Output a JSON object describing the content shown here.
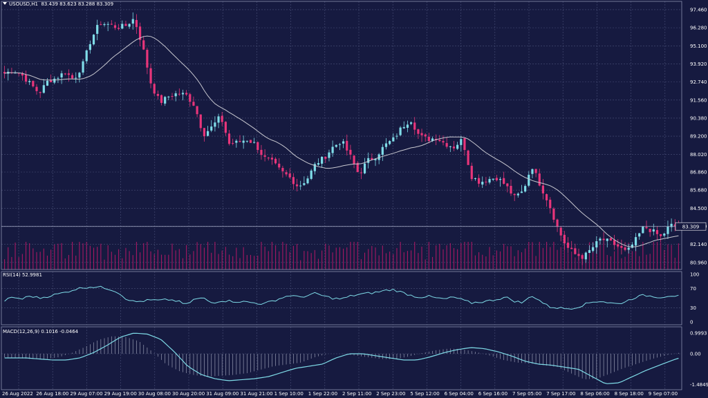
{
  "header": {
    "symbol": "USOUSD,H1",
    "ohlc": "83.439 83.623 83.288 83.309"
  },
  "current_price_label": "83.309",
  "price_axis": [
    "97.460",
    "96.280",
    "95.100",
    "93.920",
    "92.740",
    "91.560",
    "90.380",
    "89.200",
    "88.020",
    "86.860",
    "85.680",
    "84.500",
    "83.320",
    "82.140",
    "80.960"
  ],
  "time_axis": [
    "26 Aug 2022",
    "26 Aug 18:00",
    "29 Aug 07:00",
    "29 Aug 19:00",
    "30 Aug 08:00",
    "30 Aug 20:00",
    "31 Aug 09:00",
    "31 Aug 21:00",
    "1 Sep 10:00",
    "1 Sep 22:00",
    "2 Sep 11:00",
    "2 Sep 23:00",
    "5 Sep 12:00",
    "6 Sep 04:00",
    "6 Sep 16:00",
    "7 Sep 05:00",
    "7 Sep 17:00",
    "8 Sep 06:00",
    "8 Sep 18:00",
    "9 Sep 07:00"
  ],
  "rsi": {
    "label": "RSI(14) 52.9981",
    "levels": [
      "100",
      "70",
      "30",
      "0"
    ]
  },
  "macd": {
    "label": "MACD(12,26,9) 0.1016 -0.0464",
    "levels": [
      "0.9993",
      "0.00",
      "-1.4849"
    ]
  },
  "colors": {
    "background": "#161a40",
    "grid": "#4a5078",
    "bull": "#7fdce8",
    "bear": "#e8357a",
    "ma": "#c8c8d0",
    "volume": "#c0186a",
    "rsi_line": "#7fdce8",
    "macd_line": "#7fdce8",
    "text": "#ffffff"
  },
  "chart_data": {
    "type": "candlestick",
    "close_waypoints": [
      93.3,
      93.5,
      93.2,
      92.6,
      92.0,
      92.8,
      93.0,
      93.4,
      92.9,
      93.8,
      95.5,
      96.6,
      96.5,
      96.3,
      96.4,
      96.9,
      95.0,
      92.5,
      91.4,
      91.8,
      92.0,
      91.9,
      91.2,
      89.3,
      89.8,
      90.5,
      88.7,
      88.8,
      89.0,
      88.7,
      87.8,
      87.5,
      86.9,
      86.5,
      85.9,
      86.4,
      87.4,
      87.8,
      88.5,
      88.9,
      87.9,
      86.7,
      87.6,
      87.9,
      88.6,
      89.0,
      89.8,
      90.3,
      89.2,
      89.0,
      89.1,
      88.7,
      88.5,
      89.0,
      86.6,
      86.2,
      86.4,
      86.5,
      86.0,
      85.2,
      85.6,
      87.3,
      86.0,
      84.8,
      83.2,
      82.0,
      81.5,
      81.3,
      81.9,
      82.5,
      82.3,
      82.0,
      81.6,
      82.4,
      83.3,
      83.0,
      82.6,
      83.4,
      83.309
    ],
    "ma_period": 20,
    "y_range": [
      80.5,
      98.0
    ],
    "rsi_waypoints": [
      45,
      52,
      48,
      55,
      50,
      54,
      58,
      62,
      68,
      72,
      74,
      73,
      70,
      64,
      50,
      42,
      44,
      46,
      45,
      47,
      44,
      36,
      48,
      50,
      40,
      45,
      44,
      43,
      42,
      40,
      38,
      44,
      50,
      56,
      52,
      55,
      60,
      54,
      50,
      48,
      54,
      58,
      60,
      62,
      66,
      68,
      62,
      56,
      52,
      54,
      50,
      48,
      52,
      46,
      40,
      42,
      44,
      48,
      52,
      44,
      40,
      56,
      44,
      32,
      30,
      28,
      30,
      36,
      42,
      44,
      40,
      38,
      44,
      52,
      56,
      54,
      52,
      56,
      54
    ],
    "macd_waypoints": [
      -0.2,
      -0.25,
      -0.3,
      -0.3,
      -0.2,
      0.05,
      0.4,
      0.8,
      1.0,
      0.95,
      0.7,
      0.1,
      -0.6,
      -1.0,
      -1.2,
      -1.3,
      -1.25,
      -1.2,
      -1.1,
      -0.9,
      -0.7,
      -0.6,
      -0.5,
      -0.2,
      0.0,
      0.0,
      -0.1,
      -0.2,
      -0.3,
      -0.3,
      -0.15,
      0.05,
      0.2,
      0.3,
      0.25,
      0.1,
      -0.1,
      -0.35,
      -0.5,
      -0.55,
      -0.65,
      -0.75,
      -1.1,
      -1.45,
      -1.4,
      -1.1,
      -0.8,
      -0.55,
      -0.3,
      -0.1,
      0.05
    ],
    "macd_range": [
      -1.6,
      1.1
    ]
  }
}
